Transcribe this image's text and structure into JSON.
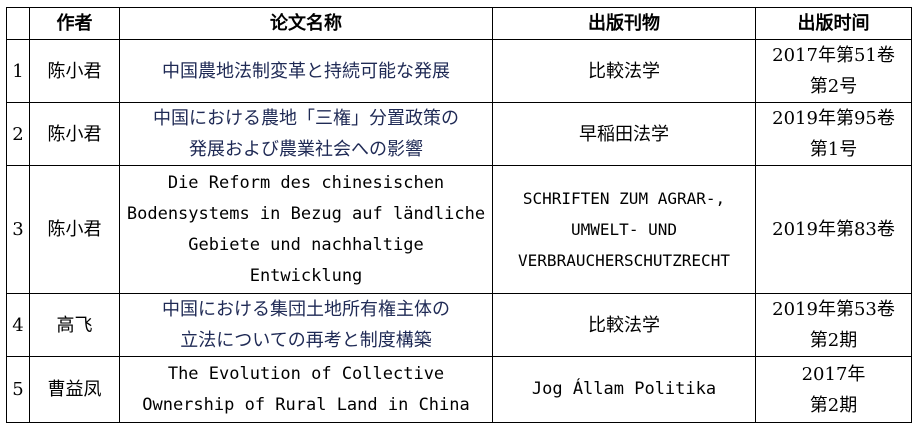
{
  "headers": {
    "index": "",
    "author": "作者",
    "title": "论文名称",
    "journal": "出版刊物",
    "date": "出版时间"
  },
  "rows": [
    {
      "index": "1",
      "author": "陈小君",
      "title": [
        "中国農地法制変革と持続可能な発展"
      ],
      "journal": [
        "比較法学"
      ],
      "date": [
        "2017年第51卷",
        "第2号"
      ]
    },
    {
      "index": "2",
      "author": "陈小君",
      "title": [
        "中国における農地「三権」分置政策の",
        "発展および農業社会への影響"
      ],
      "journal": [
        "早稲田法学"
      ],
      "date": [
        "2019年第95卷",
        "第1号"
      ]
    },
    {
      "index": "3",
      "author": "陈小君",
      "title": [
        "Die Reform des chinesischen",
        "Bodensystems in Bezug auf ländliche",
        "Gebiete und nachhaltige",
        "Entwicklung"
      ],
      "journal": [
        "SCHRIFTEN ZUM AGRAR-,",
        "UMWELT- UND",
        "VERBRAUCHERSCHUTZRECHT"
      ],
      "date": [
        "2019年第83卷"
      ]
    },
    {
      "index": "4",
      "author": "高飞",
      "title": [
        "中国における集団土地所有権主体の",
        "立法についての再考と制度構築"
      ],
      "journal": [
        "比較法学"
      ],
      "date": [
        "2019年第53卷",
        "第2期"
      ]
    },
    {
      "index": "5",
      "author": "曹益凤",
      "title": [
        "The Evolution of Collective",
        "Ownership of Rural Land in China"
      ],
      "journal": [
        "Jog Állam Politika"
      ],
      "date": [
        "2017年",
        "第2期"
      ]
    }
  ]
}
